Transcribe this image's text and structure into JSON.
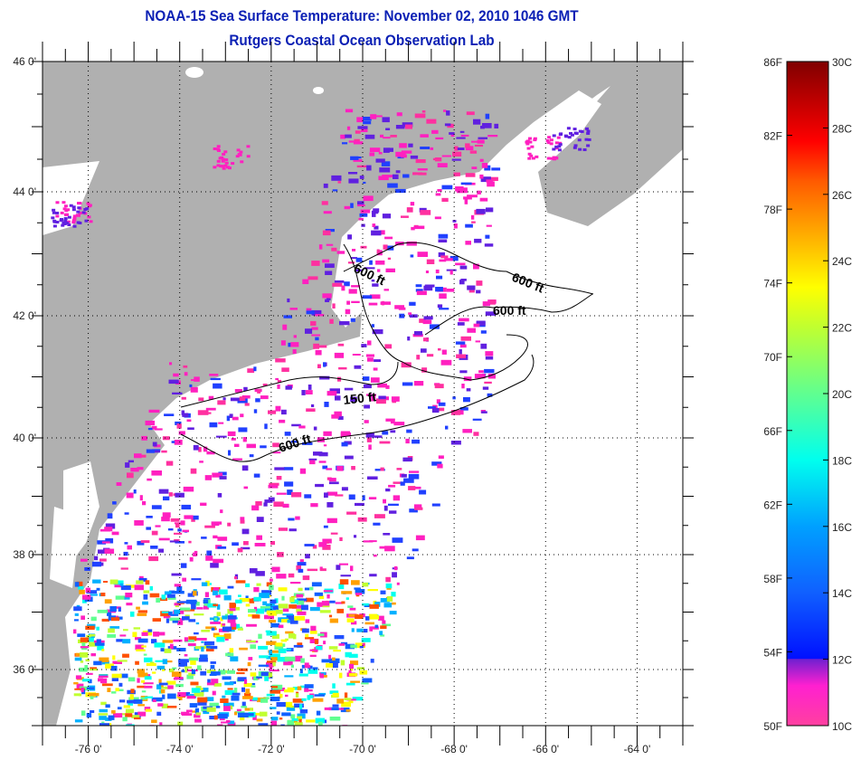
{
  "title": "NOAA-15 Sea Surface Temperature:  November 02, 2010 1046 GMT",
  "subtitle": "Rutgers Coastal Ocean Observation Lab",
  "colors": {
    "land": "#b0b0b0",
    "ocean": "#ffffff",
    "title": "#0a1fb4"
  },
  "chart_data": {
    "type": "heatmap",
    "title": "NOAA-15 Sea Surface Temperature:  November 02, 2010 1046 GMT",
    "subtitle": "Rutgers Coastal Ocean Observation Lab",
    "x_ticks": [
      "-76 0'",
      "-74 0'",
      "-72 0'",
      "-70 0'",
      "-68 0'",
      "-66 0'",
      "-64 0'"
    ],
    "x_tick_values": [
      -76,
      -74,
      -72,
      -70,
      -68,
      -66,
      -64
    ],
    "y_ticks": [
      "46 0'",
      "44 0'",
      "42 0'",
      "40 0'",
      "38 0'",
      "36 0'"
    ],
    "y_tick_values": [
      46,
      44,
      42,
      40,
      38,
      36
    ],
    "xlim": [
      -77,
      -63
    ],
    "ylim": [
      35,
      46
    ],
    "grid": true,
    "contours": [
      {
        "label": "600 ft"
      },
      {
        "label": "600 ft"
      },
      {
        "label": "600 ft"
      },
      {
        "label": "150 ft"
      },
      {
        "label": "600 ft"
      }
    ],
    "colorbar": {
      "range_c": [
        10,
        30
      ],
      "range_f": [
        50,
        86
      ],
      "f_labels": [
        "86F",
        "82F",
        "78F",
        "74F",
        "70F",
        "66F",
        "62F",
        "58F",
        "54F",
        "50F"
      ],
      "f_values": [
        86,
        82,
        78,
        74,
        70,
        66,
        62,
        58,
        54,
        50
      ],
      "c_labels": [
        "30C",
        "28C",
        "26C",
        "24C",
        "22C",
        "20C",
        "18C",
        "16C",
        "14C",
        "12C",
        "10C"
      ],
      "c_values": [
        30,
        28,
        26,
        24,
        22,
        20,
        18,
        16,
        14,
        12,
        10
      ],
      "placement": "right"
    }
  }
}
